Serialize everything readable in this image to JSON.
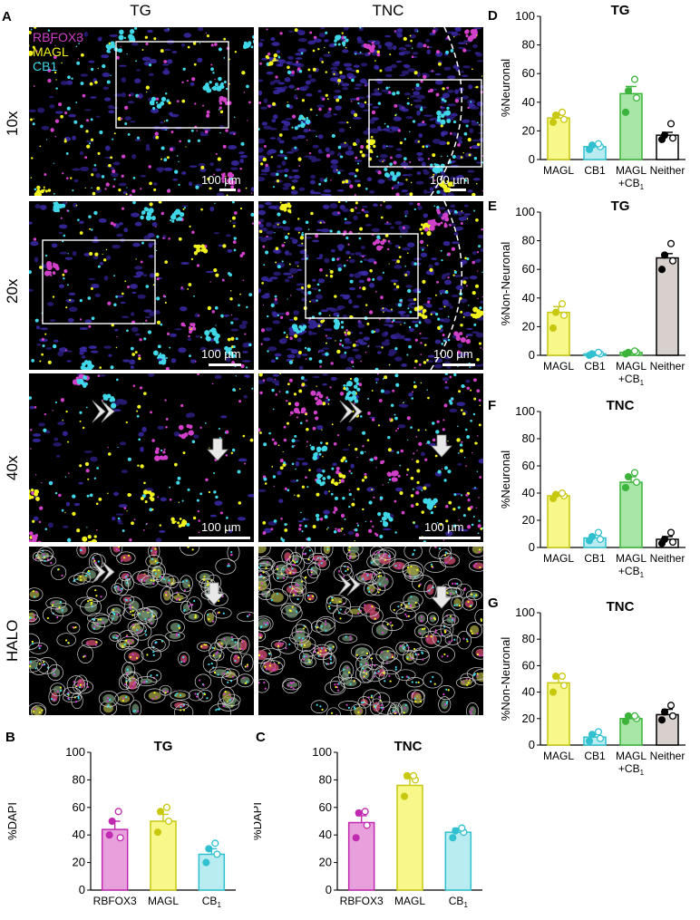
{
  "panel_a": {
    "label": "A",
    "col_titles": [
      "TG",
      "TNC"
    ],
    "row_labels": [
      "10x",
      "20x",
      "40x",
      "HALO"
    ],
    "legend": [
      {
        "text": "RBFOX3",
        "color": "#d040c8"
      },
      {
        "text": "MAGL",
        "color": "#f2f21e"
      },
      {
        "text": "CB1",
        "color": "#40d8e8"
      }
    ],
    "scale_label": "100 µm"
  },
  "chart_data": [
    {
      "panel": "B",
      "type": "bar",
      "title": "TG",
      "ylabel": "%DAPI",
      "ylim": [
        0,
        100
      ],
      "yticks": [
        0,
        20,
        40,
        60,
        80,
        100
      ],
      "categories": [
        "RBFOX3",
        "MAGL",
        "CB"
      ],
      "subscripts": [
        "",
        "",
        "1"
      ],
      "values": [
        44,
        50,
        26
      ],
      "errors": [
        6,
        5,
        4
      ],
      "colors": [
        "#e8a0dc",
        "#f7f78a",
        "#b8ecf0"
      ],
      "edge_colors": [
        "#c02ab0",
        "#c8c810",
        "#30c0d0"
      ],
      "points": [
        [
          40,
          38,
          50,
          57
        ],
        [
          42,
          50,
          57,
          60
        ],
        [
          20,
          26,
          30,
          34
        ]
      ]
    },
    {
      "panel": "C",
      "type": "bar",
      "title": "TNC",
      "ylabel": "%DAPI",
      "ylim": [
        0,
        100
      ],
      "yticks": [
        0,
        20,
        40,
        60,
        80,
        100
      ],
      "categories": [
        "RBFOX3",
        "MAGL",
        "CB"
      ],
      "subscripts": [
        "",
        "",
        "1"
      ],
      "values": [
        49,
        76,
        42
      ],
      "errors": [
        5,
        5,
        3
      ],
      "colors": [
        "#e8a0dc",
        "#f7f78a",
        "#b8ecf0"
      ],
      "edge_colors": [
        "#c02ab0",
        "#c8c810",
        "#30c0d0"
      ],
      "points": [
        [
          38,
          47,
          56,
          57
        ],
        [
          68,
          80,
          83,
          83
        ],
        [
          38,
          42,
          43,
          45
        ]
      ]
    },
    {
      "panel": "D",
      "type": "bar",
      "title": "TG",
      "ylabel": "%Neuronal",
      "ylim": [
        0,
        100
      ],
      "yticks": [
        0,
        20,
        40,
        60,
        80,
        100
      ],
      "categories": [
        "MAGL",
        "CB1",
        "MAGL",
        "Neither"
      ],
      "second_line": [
        "",
        "",
        "+CB",
        ""
      ],
      "subscripts": [
        "",
        "",
        "1",
        ""
      ],
      "values": [
        29,
        9,
        46,
        17
      ],
      "errors": [
        2,
        1,
        5,
        2
      ],
      "colors": [
        "#f7f78a",
        "#b8ecf0",
        "#a8e6a8",
        "#ffffff"
      ],
      "edge_colors": [
        "#c8c810",
        "#30c0d0",
        "#3cb43c",
        "#000000"
      ],
      "points": [
        [
          26,
          28,
          31,
          33
        ],
        [
          7,
          9,
          10,
          11
        ],
        [
          33,
          43,
          48,
          56
        ],
        [
          14,
          15,
          17,
          25
        ]
      ]
    },
    {
      "panel": "E",
      "type": "bar",
      "title": "TG",
      "ylabel": "%Non-Neuronal",
      "ylim": [
        0,
        100
      ],
      "yticks": [
        0,
        20,
        40,
        60,
        80,
        100
      ],
      "categories": [
        "MAGL",
        "CB1",
        "MAGL",
        "Neither"
      ],
      "second_line": [
        "",
        "",
        "+CB",
        ""
      ],
      "subscripts": [
        "",
        "",
        "1",
        ""
      ],
      "values": [
        30,
        1,
        2,
        68
      ],
      "errors": [
        4,
        0.5,
        0.5,
        3
      ],
      "colors": [
        "#f7f78a",
        "#b8ecf0",
        "#a8e6a8",
        "#d8d0cc"
      ],
      "edge_colors": [
        "#c8c810",
        "#30c0d0",
        "#3cb43c",
        "#000000"
      ],
      "points": [
        [
          19,
          28,
          30,
          36
        ],
        [
          0,
          1,
          1,
          2
        ],
        [
          1,
          2,
          2,
          3
        ],
        [
          60,
          66,
          70,
          78
        ]
      ]
    },
    {
      "panel": "F",
      "type": "bar",
      "title": "TNC",
      "ylabel": "%Neuronal",
      "ylim": [
        0,
        100
      ],
      "yticks": [
        0,
        20,
        40,
        60,
        80,
        100
      ],
      "categories": [
        "MAGL",
        "CB1",
        "MAGL",
        "Neither"
      ],
      "second_line": [
        "",
        "",
        "+CB",
        ""
      ],
      "subscripts": [
        "",
        "",
        "1",
        ""
      ],
      "values": [
        38,
        7,
        48,
        6
      ],
      "errors": [
        1,
        2,
        4,
        2
      ],
      "colors": [
        "#f7f78a",
        "#b8ecf0",
        "#a8e6a8",
        "#ffffff"
      ],
      "edge_colors": [
        "#c8c810",
        "#30c0d0",
        "#3cb43c",
        "#000000"
      ],
      "points": [
        [
          36,
          38,
          39,
          40
        ],
        [
          5,
          6,
          8,
          11
        ],
        [
          44,
          48,
          52,
          55
        ],
        [
          3,
          4,
          6,
          11
        ]
      ]
    },
    {
      "panel": "G",
      "type": "bar",
      "title": "TNC",
      "ylabel": "%Non-Neuronal",
      "ylim": [
        0,
        100
      ],
      "yticks": [
        0,
        20,
        40,
        60,
        80,
        100
      ],
      "categories": [
        "MAGL",
        "CB1",
        "MAGL",
        "Neither"
      ],
      "second_line": [
        "",
        "",
        "+CB",
        ""
      ],
      "subscripts": [
        "",
        "",
        "1",
        ""
      ],
      "values": [
        47,
        6,
        20,
        23
      ],
      "errors": [
        4,
        2,
        2,
        4
      ],
      "colors": [
        "#f7f78a",
        "#b8ecf0",
        "#a8e6a8",
        "#d8d0cc"
      ],
      "edge_colors": [
        "#c8c810",
        "#30c0d0",
        "#3cb43c",
        "#000000"
      ],
      "points": [
        [
          40,
          45,
          52,
          52
        ],
        [
          3,
          5,
          8,
          10
        ],
        [
          18,
          20,
          22,
          22
        ],
        [
          19,
          22,
          25,
          30
        ]
      ]
    }
  ]
}
